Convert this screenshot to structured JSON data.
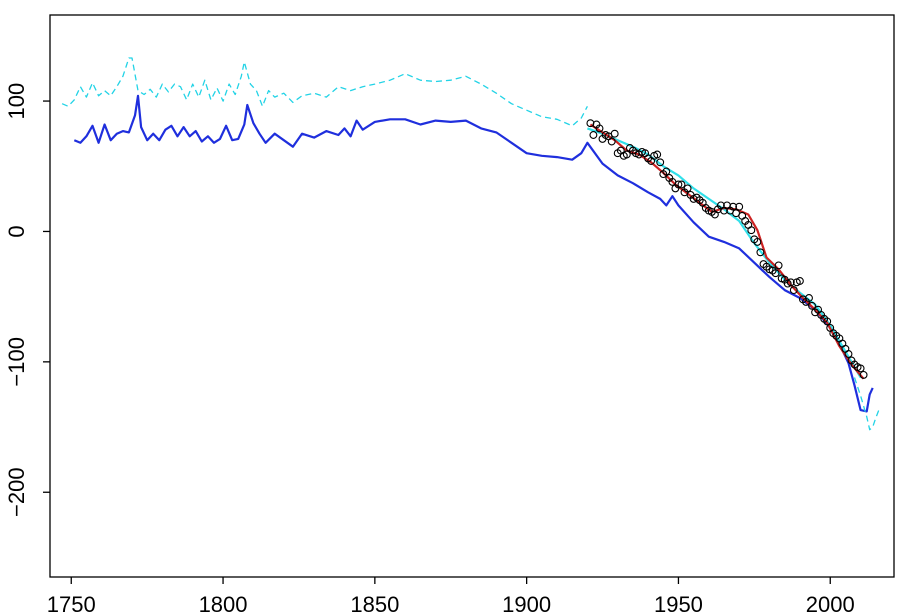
{
  "chart_data": {
    "type": "line",
    "title": "",
    "xlabel": "",
    "ylabel": "",
    "xlim": [
      1743,
      2021
    ],
    "ylim": [
      -265,
      166
    ],
    "grid": false,
    "legend": "none",
    "x_ticks": [
      1750,
      1800,
      1850,
      1900,
      1950,
      2000
    ],
    "x_tick_labels": [
      "1750",
      "1800",
      "1850",
      "1900",
      "1950",
      "2000"
    ],
    "y_ticks": [
      100,
      0,
      -100,
      -200
    ],
    "y_tick_labels": [
      "100",
      "0",
      "−100",
      "−200"
    ],
    "series": [
      {
        "style": "dashed",
        "color": "#22d3e6",
        "x": [
          1747,
          1749,
          1751,
          1753,
          1755,
          1757,
          1759,
          1761,
          1763,
          1765,
          1767,
          1769,
          1770,
          1772,
          1774,
          1776,
          1778,
          1780,
          1782,
          1784,
          1786,
          1788,
          1790,
          1792,
          1794,
          1796,
          1798,
          1800,
          1802,
          1804,
          1806,
          1807,
          1809,
          1811,
          1813,
          1815,
          1817,
          1820,
          1823,
          1826,
          1830,
          1834,
          1838,
          1842,
          1846,
          1850,
          1855,
          1860,
          1865,
          1870,
          1875,
          1880,
          1885,
          1890,
          1895,
          1900,
          1905,
          1910,
          1915,
          1918,
          1920
        ],
        "y": [
          98,
          96,
          101,
          111,
          103,
          114,
          104,
          108,
          104,
          111,
          119,
          133,
          133,
          108,
          105,
          109,
          103,
          113,
          107,
          113,
          111,
          101,
          113,
          103,
          116,
          101,
          110,
          100,
          113,
          105,
          119,
          130,
          113,
          108,
          96,
          108,
          103,
          106,
          99,
          104,
          106,
          103,
          111,
          108,
          111,
          113,
          116,
          121,
          116,
          115,
          116,
          119,
          113,
          106,
          98,
          93,
          88,
          86,
          81,
          87,
          96
        ]
      },
      {
        "style": "solid",
        "color": "#1f2fdd",
        "x": [
          1751,
          1753,
          1755,
          1757,
          1759,
          1761,
          1763,
          1765,
          1767,
          1769,
          1771,
          1772,
          1773,
          1775,
          1777,
          1779,
          1781,
          1783,
          1785,
          1787,
          1789,
          1791,
          1793,
          1795,
          1797,
          1799,
          1801,
          1803,
          1805,
          1807,
          1808,
          1810,
          1812,
          1814,
          1817,
          1820,
          1823,
          1826,
          1830,
          1834,
          1838,
          1840,
          1842,
          1844,
          1846,
          1850,
          1855,
          1860,
          1865,
          1870,
          1875,
          1880,
          1885,
          1890,
          1895,
          1900,
          1905,
          1910,
          1915,
          1918,
          1920,
          1925,
          1930,
          1935,
          1940,
          1944,
          1946,
          1948,
          1950,
          1955,
          1960,
          1965,
          1970,
          1975,
          1980,
          1985,
          1990,
          1995,
          2000,
          2003,
          2006,
          2008,
          2010,
          2012,
          2013,
          2014
        ],
        "y": [
          70,
          68,
          73,
          81,
          68,
          82,
          70,
          75,
          77,
          76,
          89,
          104,
          80,
          70,
          75,
          70,
          78,
          81,
          73,
          80,
          73,
          77,
          69,
          73,
          68,
          71,
          81,
          70,
          71,
          82,
          97,
          83,
          75,
          68,
          75,
          70,
          65,
          75,
          72,
          77,
          74,
          79,
          73,
          85,
          78,
          84,
          86,
          86,
          82,
          85,
          84,
          85,
          79,
          76,
          68,
          60,
          58,
          57,
          55,
          60,
          68,
          52,
          43,
          37,
          30,
          25,
          20,
          27,
          20,
          7,
          -4,
          -8,
          -13,
          -24,
          -35,
          -45,
          -51,
          -60,
          -74,
          -86,
          -101,
          -118,
          -137,
          -138,
          -125,
          -120
        ]
      },
      {
        "style": "dashed",
        "color": "#22d3e6",
        "x": [
          2008,
          2010,
          2012,
          2013,
          2014,
          2015,
          2016
        ],
        "y": [
          -112,
          -126,
          -142,
          -152,
          -150,
          -143,
          -137
        ]
      },
      {
        "style": "solid",
        "color": "#31e0ea",
        "x": [
          1920,
          1925,
          1930,
          1935,
          1940,
          1945,
          1950,
          1955,
          1960,
          1965,
          1970,
          1975,
          1980,
          1985,
          1990,
          1995,
          2000,
          2005,
          2010
        ],
        "y": [
          79,
          75,
          70,
          65,
          59,
          50,
          43,
          33,
          25,
          17,
          8,
          -9,
          -24,
          -37,
          -47,
          -56,
          -72,
          -92,
          -112
        ]
      },
      {
        "style": "solid",
        "color": "#cc2222",
        "x": [
          1921,
          1925,
          1929,
          1933,
          1937,
          1941,
          1945,
          1949,
          1953,
          1957,
          1961,
          1965,
          1969,
          1973,
          1976,
          1979,
          1983,
          1987,
          1991,
          1995,
          1999,
          2003,
          2007,
          2011
        ],
        "y": [
          82,
          76,
          70,
          62,
          59,
          53,
          45,
          36,
          29,
          22,
          15,
          18,
          17,
          13,
          1,
          -20,
          -29,
          -41,
          -51,
          -60,
          -70,
          -88,
          -102,
          -113
        ]
      },
      {
        "style": "points",
        "color": "#000000",
        "x": [
          1921,
          1922,
          1923,
          1924,
          1925,
          1926,
          1927,
          1928,
          1929,
          1930,
          1931,
          1932,
          1933,
          1934,
          1935,
          1936,
          1937,
          1938,
          1939,
          1940,
          1941,
          1942,
          1943,
          1944,
          1945,
          1946,
          1947,
          1948,
          1949,
          1950,
          1951,
          1952,
          1953,
          1954,
          1955,
          1956,
          1957,
          1958,
          1959,
          1960,
          1961,
          1962,
          1963,
          1964,
          1965,
          1966,
          1967,
          1968,
          1969,
          1970,
          1971,
          1972,
          1973,
          1974,
          1975,
          1976,
          1977,
          1978,
          1979,
          1980,
          1981,
          1982,
          1983,
          1984,
          1985,
          1986,
          1987,
          1988,
          1989,
          1990,
          1991,
          1992,
          1993,
          1994,
          1995,
          1996,
          1997,
          1998,
          1999,
          2000,
          2001,
          2002,
          2003,
          2004,
          2005,
          2006,
          2007,
          2008,
          2009,
          2010,
          2011
        ],
        "y": [
          83,
          74,
          82,
          79,
          71,
          74,
          73,
          69,
          75,
          60,
          62,
          58,
          59,
          64,
          62,
          60,
          59,
          61,
          60,
          56,
          54,
          58,
          59,
          53,
          44,
          46,
          41,
          38,
          33,
          36,
          36,
          30,
          33,
          28,
          25,
          26,
          24,
          22,
          18,
          16,
          15,
          13,
          17,
          20,
          16,
          20,
          16,
          19,
          14,
          19,
          12,
          8,
          5,
          1,
          -6,
          -8,
          -16,
          -25,
          -27,
          -29,
          -30,
          -32,
          -26,
          -36,
          -37,
          -40,
          -39,
          -45,
          -39,
          -38,
          -52,
          -54,
          -51,
          -57,
          -62,
          -60,
          -64,
          -67,
          -69,
          -74,
          -78,
          -80,
          -82,
          -86,
          -90,
          -94,
          -99,
          -102,
          -104,
          -105,
          -110
        ]
      }
    ]
  }
}
